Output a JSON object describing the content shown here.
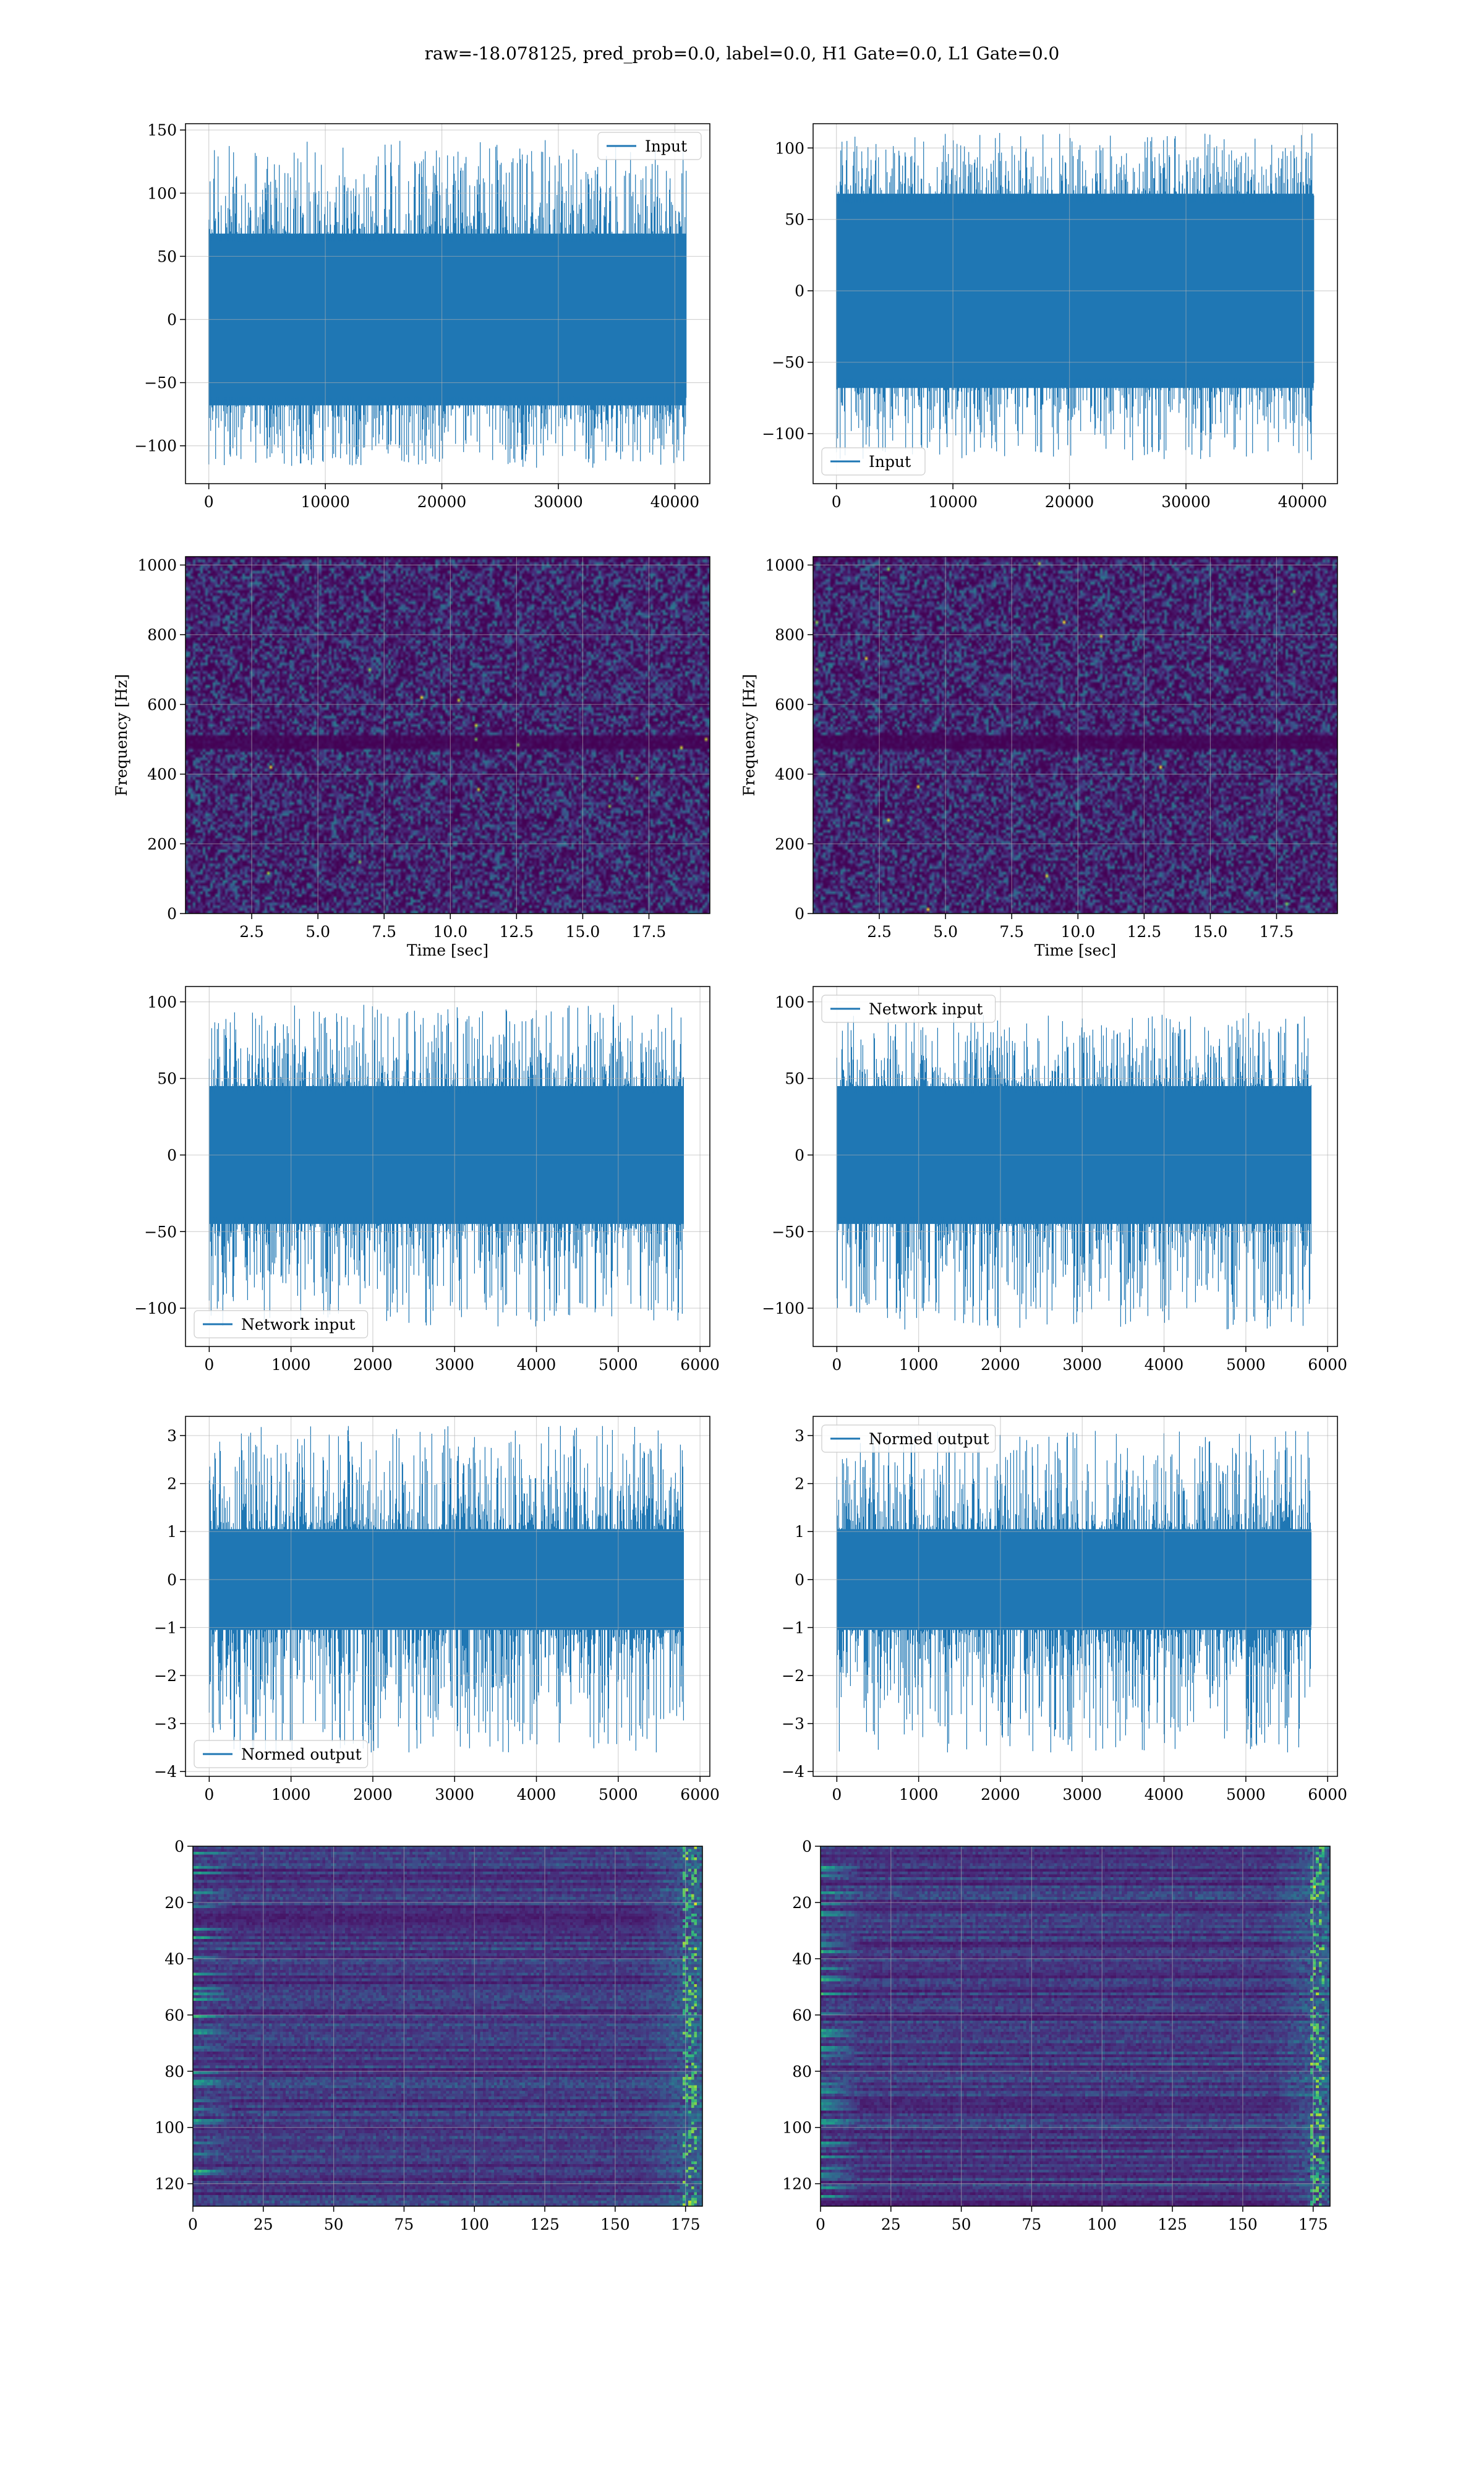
{
  "suptitle": "raw=-18.078125, pred_prob=0.0, label=0.0, H1 Gate=0.0, L1 Gate=0.0",
  "colors": {
    "line": "#1f77b4",
    "grid": "#b0b0b0",
    "viridis_low": "#440154",
    "viridis_high": "#fde725"
  },
  "chart_data": [
    {
      "id": "input-h1",
      "type": "line",
      "series": [
        {
          "name": "Input"
        }
      ],
      "legend": "top-right",
      "x_ticks": [
        0,
        10000,
        20000,
        30000,
        40000
      ],
      "xlim": [
        -2000,
        43000
      ],
      "y_ticks": [
        -100,
        -50,
        0,
        50,
        100,
        150
      ],
      "ylim": [
        -130,
        155
      ],
      "grid": true,
      "n_points": 40960,
      "env_lo": -68,
      "env_hi": 68,
      "spike_max": 145,
      "spike_min": -122
    },
    {
      "id": "input-l1",
      "type": "line",
      "series": [
        {
          "name": "Input"
        }
      ],
      "legend": "bottom-left",
      "x_ticks": [
        0,
        10000,
        20000,
        30000,
        40000
      ],
      "xlim": [
        -2000,
        43000
      ],
      "y_ticks": [
        -100,
        -50,
        0,
        50,
        100
      ],
      "ylim": [
        -135,
        117
      ],
      "grid": true,
      "n_points": 40960,
      "env_lo": -68,
      "env_hi": 68,
      "spike_max": 115,
      "spike_min": -123
    },
    {
      "id": "spec-h1",
      "type": "heatmap",
      "xlabel": "Time [sec]",
      "ylabel": "Frequency [Hz]",
      "x_ticks": [
        2.5,
        5.0,
        7.5,
        10.0,
        12.5,
        15.0,
        17.5
      ],
      "x_tick_labels": [
        "2.5",
        "5.0",
        "7.5",
        "10.0",
        "12.5",
        "15.0",
        "17.5"
      ],
      "xlim": [
        0,
        19.8
      ],
      "y_ticks": [
        0,
        200,
        400,
        600,
        800,
        1000
      ],
      "ylim": [
        0,
        1024
      ],
      "grid": true,
      "notch_hz": 500
    },
    {
      "id": "spec-l1",
      "type": "heatmap",
      "xlabel": "Time [sec]",
      "ylabel": "Frequency [Hz]",
      "x_ticks": [
        2.5,
        5.0,
        7.5,
        10.0,
        12.5,
        15.0,
        17.5
      ],
      "x_tick_labels": [
        "2.5",
        "5.0",
        "7.5",
        "10.0",
        "12.5",
        "15.0",
        "17.5"
      ],
      "xlim": [
        0,
        19.8
      ],
      "y_ticks": [
        0,
        200,
        400,
        600,
        800,
        1000
      ],
      "ylim": [
        0,
        1024
      ],
      "grid": true,
      "notch_hz": 500
    },
    {
      "id": "network-h1",
      "type": "line",
      "series": [
        {
          "name": "Network input"
        }
      ],
      "legend": "bottom-left",
      "x_ticks": [
        0,
        1000,
        2000,
        3000,
        4000,
        5000,
        6000
      ],
      "xlim": [
        -290,
        6120
      ],
      "y_ticks": [
        -100,
        -50,
        0,
        50,
        100
      ],
      "ylim": [
        -125,
        110
      ],
      "grid": true,
      "n_points": 5800,
      "env_lo": -45,
      "env_hi": 45,
      "spike_max": 100,
      "spike_min": -113
    },
    {
      "id": "network-l1",
      "type": "line",
      "series": [
        {
          "name": "Network input"
        }
      ],
      "legend": "top-left",
      "x_ticks": [
        0,
        1000,
        2000,
        3000,
        4000,
        5000,
        6000
      ],
      "xlim": [
        -290,
        6120
      ],
      "y_ticks": [
        -100,
        -50,
        0,
        50,
        100
      ],
      "ylim": [
        -125,
        110
      ],
      "grid": true,
      "n_points": 5800,
      "env_lo": -45,
      "env_hi": 45,
      "spike_max": 95,
      "spike_min": -115
    },
    {
      "id": "normed-h1",
      "type": "line",
      "series": [
        {
          "name": "Normed output"
        }
      ],
      "legend": "bottom-left",
      "x_ticks": [
        0,
        1000,
        2000,
        3000,
        4000,
        5000,
        6000
      ],
      "xlim": [
        -290,
        6120
      ],
      "y_ticks": [
        -4,
        -3,
        -2,
        -1,
        0,
        1,
        2,
        3
      ],
      "ylim": [
        -4.1,
        3.4
      ],
      "grid": true,
      "n_points": 5800,
      "env_lo": -1.05,
      "env_hi": 1.05,
      "spike_max": 3.2,
      "spike_min": -3.6
    },
    {
      "id": "normed-l1",
      "type": "line",
      "series": [
        {
          "name": "Normed output"
        }
      ],
      "legend": "top-left",
      "x_ticks": [
        0,
        1000,
        2000,
        3000,
        4000,
        5000,
        6000
      ],
      "xlim": [
        -290,
        6120
      ],
      "y_ticks": [
        -4,
        -3,
        -2,
        -1,
        0,
        1,
        2,
        3
      ],
      "ylim": [
        -4.1,
        3.4
      ],
      "grid": true,
      "n_points": 5800,
      "env_lo": -1.05,
      "env_hi": 1.05,
      "spike_max": 3.1,
      "spike_min": -3.6
    },
    {
      "id": "features-h1",
      "type": "heatmap",
      "x_ticks": [
        0,
        25,
        50,
        75,
        100,
        125,
        150,
        175
      ],
      "xlim": [
        0,
        181
      ],
      "y_ticks": [
        0,
        20,
        40,
        60,
        80,
        100,
        120
      ],
      "ylim": [
        128,
        0
      ],
      "grid": true,
      "rows": 128,
      "cols": 181
    },
    {
      "id": "features-l1",
      "type": "heatmap",
      "x_ticks": [
        0,
        25,
        50,
        75,
        100,
        125,
        150,
        175
      ],
      "xlim": [
        0,
        181
      ],
      "y_ticks": [
        0,
        20,
        40,
        60,
        80,
        100,
        120
      ],
      "ylim": [
        128,
        0
      ],
      "grid": true,
      "rows": 128,
      "cols": 181
    }
  ]
}
